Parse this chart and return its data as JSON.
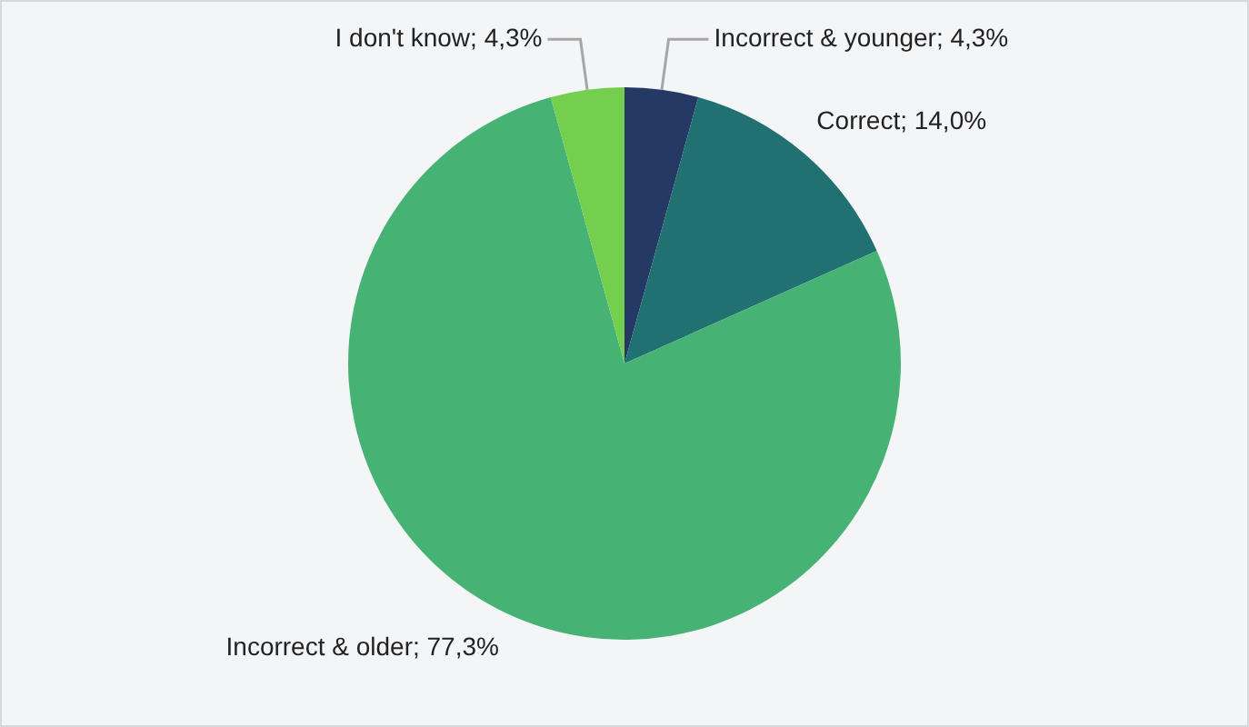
{
  "chart_data": {
    "type": "pie",
    "categories": [
      "Incorrect & younger",
      "Correct",
      "Incorrect & older",
      "I don't know"
    ],
    "values": [
      4.3,
      14.0,
      77.3,
      4.3
    ],
    "value_labels": [
      "4,3%",
      "14,0%",
      "77,3%",
      "4,3%"
    ],
    "colors": [
      "#243a64",
      "#217173",
      "#46b274",
      "#74cf4f"
    ],
    "legend": false
  }
}
